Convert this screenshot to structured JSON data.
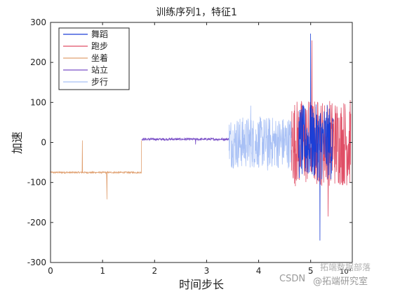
{
  "chart_data": {
    "type": "line",
    "title": "训练序列1，特征1",
    "xlabel": "时间步长",
    "ylabel": "加速",
    "x_exponent_label": "10⁴",
    "xlim": [
      0,
      5.8
    ],
    "ylim": [
      -300,
      300
    ],
    "xticks": [
      "0",
      "1",
      "2",
      "3",
      "4",
      "5"
    ],
    "yticks": [
      "-300",
      "-200",
      "-100",
      "0",
      "100",
      "200",
      "300"
    ],
    "x_unit_scale": 10000,
    "legend_position": "top-left",
    "grid": false,
    "series": [
      {
        "name": "舞蹈",
        "color": "#1c3fd6",
        "segments": [
          {
            "x": [
              4.77,
              5.43
            ],
            "center": 0,
            "amplitude": 95,
            "min": -245,
            "max": 272
          }
        ]
      },
      {
        "name": "跑步",
        "color": "#e04e66",
        "segments": [
          {
            "x": [
              4.63,
              5.77
            ],
            "center": 0,
            "amplitude": 110,
            "min": -185,
            "max": 255
          }
        ]
      },
      {
        "name": "坐着",
        "color": "#e0a070",
        "segments": [
          {
            "x": [
              0.0,
              1.75
            ],
            "center": -75,
            "amplitude": 2,
            "min": -142,
            "max": 5
          }
        ]
      },
      {
        "name": "站立",
        "color": "#7a4fc7",
        "segments": [
          {
            "x": [
              1.75,
              3.43
            ],
            "center": 8,
            "amplitude": 3,
            "min": -5,
            "max": 12
          }
        ]
      },
      {
        "name": "步行",
        "color": "#a8c0f5",
        "segments": [
          {
            "x": [
              3.43,
              4.63
            ],
            "center": 0,
            "amplitude": 65,
            "min": -70,
            "max": 92
          }
        ]
      }
    ]
  },
  "watermark": {
    "csdn": "CSDN",
    "handle": "@拓端研究室",
    "brand": "拓端数据部落"
  }
}
